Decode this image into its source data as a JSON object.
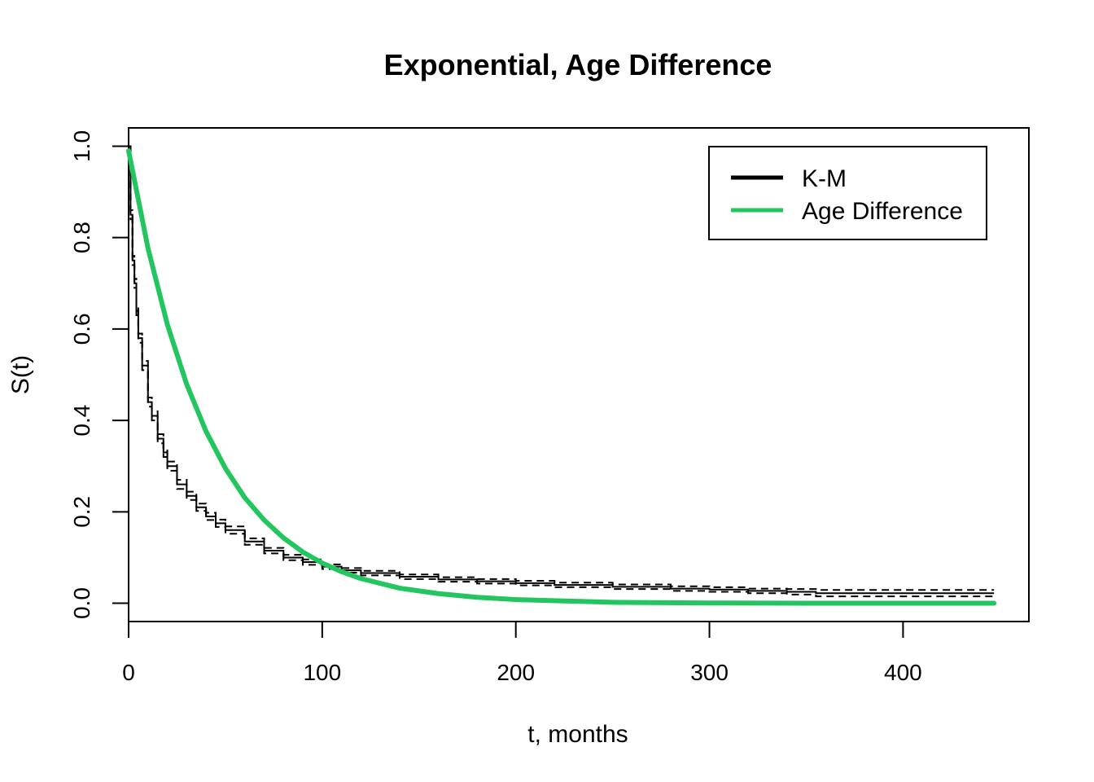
{
  "chart_data": {
    "type": "line",
    "title": "Exponential, Age Difference",
    "xlabel": "t, months",
    "ylabel": "S(t)",
    "xlim": [
      0,
      465
    ],
    "ylim": [
      -0.04,
      1.04
    ],
    "x_ticks": [
      0,
      100,
      200,
      300,
      400
    ],
    "y_ticks": [
      0.0,
      0.2,
      0.4,
      0.6,
      0.8,
      1.0
    ],
    "x_tick_labels": [
      "0",
      "100",
      "200",
      "300",
      "400"
    ],
    "y_tick_labels": [
      "0.0",
      "0.2",
      "0.4",
      "0.6",
      "0.8",
      "1.0"
    ],
    "grid": false,
    "legend_position": "top-right",
    "legend": [
      {
        "label": "K-M",
        "color": "#000000"
      },
      {
        "label": "Age Difference",
        "color": "#22c55e"
      }
    ],
    "series": [
      {
        "name": "K-M",
        "style": "step",
        "color": "#000000",
        "x": [
          0,
          1,
          2,
          3,
          4,
          5,
          7,
          10,
          12,
          15,
          18,
          20,
          25,
          30,
          35,
          40,
          45,
          50,
          60,
          70,
          80,
          90,
          100,
          110,
          120,
          140,
          160,
          180,
          200,
          220,
          250,
          280,
          300,
          320,
          340,
          355,
          447
        ],
        "values": [
          1.0,
          0.85,
          0.75,
          0.7,
          0.64,
          0.58,
          0.52,
          0.44,
          0.41,
          0.36,
          0.33,
          0.3,
          0.26,
          0.235,
          0.21,
          0.19,
          0.175,
          0.16,
          0.135,
          0.115,
          0.1,
          0.09,
          0.08,
          0.072,
          0.066,
          0.058,
          0.052,
          0.048,
          0.044,
          0.04,
          0.036,
          0.032,
          0.03,
          0.027,
          0.025,
          0.022,
          0.022
        ]
      },
      {
        "name": "K-M lower 95% CI",
        "style": "step-dashed",
        "color": "#000000",
        "x": [
          0,
          1,
          2,
          3,
          4,
          5,
          7,
          10,
          12,
          15,
          18,
          20,
          25,
          30,
          35,
          40,
          45,
          50,
          60,
          70,
          80,
          90,
          100,
          110,
          120,
          140,
          160,
          180,
          200,
          220,
          250,
          280,
          300,
          320,
          340,
          355,
          447
        ],
        "values": [
          1.0,
          0.84,
          0.74,
          0.69,
          0.63,
          0.57,
          0.51,
          0.43,
          0.4,
          0.35,
          0.32,
          0.29,
          0.25,
          0.226,
          0.202,
          0.182,
          0.167,
          0.152,
          0.128,
          0.109,
          0.094,
          0.084,
          0.075,
          0.067,
          0.061,
          0.053,
          0.047,
          0.043,
          0.039,
          0.035,
          0.031,
          0.027,
          0.025,
          0.022,
          0.019,
          0.015,
          0.015
        ]
      },
      {
        "name": "K-M upper 95% CI",
        "style": "step-dashed",
        "color": "#000000",
        "x": [
          0,
          1,
          2,
          3,
          4,
          5,
          7,
          10,
          12,
          15,
          18,
          20,
          25,
          30,
          35,
          40,
          45,
          50,
          60,
          70,
          80,
          90,
          100,
          110,
          120,
          140,
          160,
          180,
          200,
          220,
          250,
          280,
          300,
          320,
          340,
          355,
          447
        ],
        "values": [
          1.0,
          0.86,
          0.76,
          0.71,
          0.65,
          0.59,
          0.53,
          0.45,
          0.42,
          0.37,
          0.34,
          0.31,
          0.27,
          0.244,
          0.218,
          0.198,
          0.183,
          0.168,
          0.142,
          0.121,
          0.106,
          0.096,
          0.085,
          0.077,
          0.071,
          0.063,
          0.057,
          0.053,
          0.049,
          0.045,
          0.041,
          0.037,
          0.035,
          0.032,
          0.031,
          0.029,
          0.029
        ]
      },
      {
        "name": "Age Difference",
        "style": "line",
        "color": "#22c55e",
        "x": [
          0,
          10,
          20,
          30,
          40,
          50,
          60,
          70,
          80,
          90,
          100,
          110,
          120,
          140,
          160,
          180,
          200,
          250,
          300,
          350,
          400,
          447
        ],
        "values": [
          0.99,
          0.777,
          0.61,
          0.479,
          0.376,
          0.295,
          0.231,
          0.182,
          0.143,
          0.112,
          0.088,
          0.069,
          0.054,
          0.033,
          0.021,
          0.013,
          0.008,
          0.002,
          0.0006,
          0.0002,
          0.0,
          0.0
        ]
      }
    ]
  }
}
